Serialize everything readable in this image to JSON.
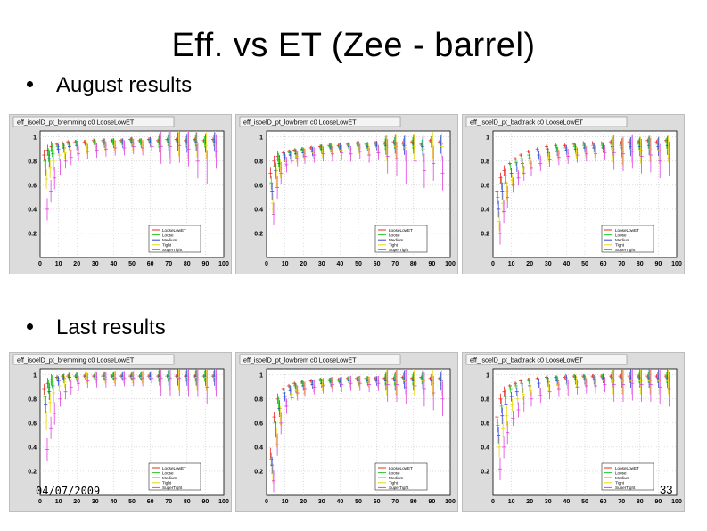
{
  "slide": {
    "title": "Eff. vs ET (Zee - barrel)",
    "bullets": [
      "August results",
      "Last results"
    ],
    "footer_date": "04/07/2009",
    "page_number": "33"
  },
  "legend_entries": [
    "LooseLowET",
    "Loose",
    "Medium",
    "Tight",
    "SuperTight"
  ],
  "series_colors": [
    "#e8282a",
    "#22cc22",
    "#3344dd",
    "#e6d800",
    "#e040e0"
  ],
  "chart_data": [
    {
      "id": "aug-bremming",
      "type": "scatter",
      "title": "eff_isoelD_pt_bremming c0 LooseLowET",
      "x": [
        3,
        5,
        7,
        10,
        13,
        16,
        20,
        25,
        30,
        35,
        40,
        45,
        50,
        55,
        60,
        65,
        70,
        75,
        80,
        85,
        90,
        95
      ],
      "xlim": [
        0,
        100
      ],
      "ylim": [
        0,
        1.05
      ],
      "xticks": [
        "0",
        "10",
        "20",
        "30",
        "40",
        "50",
        "60",
        "70",
        "80",
        "90",
        "100"
      ],
      "yticks": [
        "0.2",
        "0.4",
        "0.6",
        "0.8",
        "1"
      ],
      "legend": "bottom-right",
      "grid": true,
      "series": [
        {
          "name": "LooseLowET",
          "values": [
            0.85,
            0.89,
            0.92,
            0.94,
            0.95,
            0.96,
            0.96,
            0.96,
            0.97,
            0.97,
            0.97,
            0.97,
            0.98,
            0.97,
            0.98,
            0.97,
            0.98,
            0.98,
            0.97,
            0.98,
            0.97,
            0.98
          ]
        },
        {
          "name": "Loose",
          "values": [
            0.8,
            0.85,
            0.89,
            0.92,
            0.93,
            0.94,
            0.95,
            0.95,
            0.96,
            0.96,
            0.96,
            0.96,
            0.97,
            0.96,
            0.97,
            0.96,
            0.97,
            0.97,
            0.96,
            0.97,
            0.96,
            0.97
          ]
        },
        {
          "name": "Medium",
          "values": [
            0.75,
            0.82,
            0.86,
            0.9,
            0.91,
            0.92,
            0.93,
            0.94,
            0.94,
            0.95,
            0.95,
            0.95,
            0.96,
            0.95,
            0.96,
            0.95,
            0.96,
            0.96,
            0.95,
            0.96,
            0.95,
            0.96
          ]
        },
        {
          "name": "Tight",
          "values": [
            0.65,
            0.74,
            0.8,
            0.85,
            0.87,
            0.89,
            0.9,
            0.91,
            0.92,
            0.93,
            0.93,
            0.93,
            0.94,
            0.93,
            0.94,
            0.93,
            0.94,
            0.95,
            0.93,
            0.94,
            0.93,
            0.94
          ]
        },
        {
          "name": "SuperTight",
          "values": [
            0.4,
            0.55,
            0.66,
            0.75,
            0.8,
            0.83,
            0.86,
            0.88,
            0.89,
            0.9,
            0.91,
            0.91,
            0.92,
            0.91,
            0.92,
            0.92,
            0.92,
            0.93,
            0.9,
            0.8,
            0.75,
            0.88
          ]
        }
      ]
    },
    {
      "id": "aug-lowbrem",
      "type": "scatter",
      "title": "eff_isoelD_pt_lowbrem c0 LooseLowET",
      "x": [
        3,
        5,
        7,
        10,
        13,
        16,
        20,
        25,
        30,
        35,
        40,
        45,
        50,
        55,
        60,
        65,
        70,
        75,
        80,
        85,
        90,
        95
      ],
      "xlim": [
        0,
        100
      ],
      "ylim": [
        0,
        1.05
      ],
      "xticks": [
        "0",
        "10",
        "20",
        "30",
        "40",
        "50",
        "60",
        "70",
        "80",
        "90",
        "100"
      ],
      "yticks": [
        "0.2",
        "0.4",
        "0.6",
        "0.8",
        "1"
      ],
      "legend": "bottom-right",
      "grid": true,
      "series": [
        {
          "name": "LooseLowET",
          "values": [
            0.7,
            0.8,
            0.84,
            0.87,
            0.88,
            0.89,
            0.9,
            0.91,
            0.92,
            0.93,
            0.93,
            0.94,
            0.95,
            0.94,
            0.95,
            0.95,
            0.96,
            0.95,
            0.96,
            0.94,
            0.97,
            0.96
          ]
        },
        {
          "name": "Loose",
          "values": [
            0.62,
            0.76,
            0.81,
            0.85,
            0.87,
            0.88,
            0.89,
            0.9,
            0.91,
            0.92,
            0.92,
            0.93,
            0.94,
            0.93,
            0.94,
            0.94,
            0.95,
            0.94,
            0.95,
            0.93,
            0.96,
            0.95
          ]
        },
        {
          "name": "Medium",
          "values": [
            0.55,
            0.72,
            0.78,
            0.83,
            0.85,
            0.86,
            0.87,
            0.88,
            0.9,
            0.91,
            0.91,
            0.92,
            0.93,
            0.92,
            0.93,
            0.93,
            0.94,
            0.93,
            0.94,
            0.92,
            0.95,
            0.94
          ]
        },
        {
          "name": "Tight",
          "values": [
            0.45,
            0.66,
            0.74,
            0.8,
            0.83,
            0.84,
            0.86,
            0.87,
            0.88,
            0.89,
            0.89,
            0.9,
            0.91,
            0.9,
            0.91,
            0.91,
            0.92,
            0.91,
            0.92,
            0.9,
            0.93,
            0.92
          ]
        },
        {
          "name": "SuperTight",
          "values": [
            0.36,
            0.58,
            0.7,
            0.77,
            0.8,
            0.82,
            0.84,
            0.85,
            0.86,
            0.86,
            0.87,
            0.86,
            0.88,
            0.85,
            0.87,
            0.84,
            0.82,
            0.75,
            0.8,
            0.72,
            0.78,
            0.7
          ]
        }
      ]
    },
    {
      "id": "aug-badtrack",
      "type": "scatter",
      "title": "eff_isoelD_pt_badtrack c0 LooseLowET",
      "x": [
        3,
        5,
        7,
        10,
        13,
        16,
        20,
        25,
        30,
        35,
        40,
        45,
        50,
        55,
        60,
        65,
        70,
        75,
        80,
        85,
        90,
        95
      ],
      "xlim": [
        0,
        100
      ],
      "ylim": [
        0,
        1.05
      ],
      "xticks": [
        "0",
        "10",
        "20",
        "30",
        "40",
        "50",
        "60",
        "70",
        "80",
        "90",
        "100"
      ],
      "yticks": [
        "0.2",
        "0.4",
        "0.6",
        "0.8",
        "1"
      ],
      "legend": "bottom-right",
      "grid": true,
      "series": [
        {
          "name": "LooseLowET",
          "values": [
            0.55,
            0.66,
            0.72,
            0.78,
            0.82,
            0.85,
            0.88,
            0.9,
            0.92,
            0.93,
            0.93,
            0.94,
            0.95,
            0.95,
            0.95,
            0.96,
            0.95,
            0.96,
            0.96,
            0.97,
            0.96,
            0.97
          ]
        },
        {
          "name": "Loose",
          "values": [
            0.5,
            0.62,
            0.68,
            0.75,
            0.79,
            0.82,
            0.85,
            0.88,
            0.9,
            0.91,
            0.91,
            0.92,
            0.93,
            0.93,
            0.93,
            0.94,
            0.93,
            0.94,
            0.94,
            0.95,
            0.94,
            0.95
          ]
        },
        {
          "name": "Medium",
          "values": [
            0.4,
            0.55,
            0.62,
            0.7,
            0.75,
            0.78,
            0.82,
            0.85,
            0.87,
            0.88,
            0.89,
            0.9,
            0.91,
            0.91,
            0.91,
            0.92,
            0.91,
            0.92,
            0.92,
            0.93,
            0.92,
            0.93
          ]
        },
        {
          "name": "Tight",
          "values": [
            0.3,
            0.45,
            0.55,
            0.64,
            0.7,
            0.74,
            0.78,
            0.81,
            0.84,
            0.86,
            0.86,
            0.87,
            0.88,
            0.88,
            0.89,
            0.9,
            0.88,
            0.9,
            0.89,
            0.9,
            0.89,
            0.9
          ]
        },
        {
          "name": "SuperTight",
          "values": [
            0.2,
            0.38,
            0.5,
            0.6,
            0.66,
            0.7,
            0.74,
            0.78,
            0.81,
            0.83,
            0.84,
            0.85,
            0.86,
            0.86,
            0.87,
            0.87,
            0.86,
            0.88,
            0.84,
            0.85,
            0.8,
            0.82
          ]
        }
      ]
    },
    {
      "id": "last-bremming",
      "type": "scatter",
      "title": "eff_isoelD_pt_bremming c0 LooseLowET",
      "x": [
        3,
        5,
        7,
        10,
        13,
        16,
        20,
        25,
        30,
        35,
        40,
        45,
        50,
        55,
        60,
        65,
        70,
        75,
        80,
        85,
        90,
        95
      ],
      "xlim": [
        0,
        100
      ],
      "ylim": [
        0,
        1.05
      ],
      "xticks": [
        "0",
        "10",
        "20",
        "30",
        "40",
        "50",
        "60",
        "70",
        "80",
        "90",
        "100"
      ],
      "yticks": [
        "0.2",
        "0.4",
        "0.6",
        "0.8",
        "1"
      ],
      "legend": "bottom-right",
      "grid": true,
      "series": [
        {
          "name": "LooseLowET",
          "values": [
            0.88,
            0.93,
            0.96,
            0.98,
            0.99,
            0.99,
            0.99,
            0.99,
            0.99,
            0.99,
            0.99,
            0.99,
            0.99,
            0.99,
            0.99,
            0.99,
            0.99,
            0.99,
            0.99,
            0.99,
            0.99,
            0.99
          ]
        },
        {
          "name": "Loose",
          "values": [
            0.82,
            0.9,
            0.94,
            0.97,
            0.98,
            0.99,
            0.99,
            0.99,
            0.99,
            0.99,
            0.99,
            0.99,
            0.99,
            0.99,
            0.99,
            0.99,
            0.99,
            0.99,
            0.99,
            0.99,
            0.99,
            0.99
          ]
        },
        {
          "name": "Medium",
          "values": [
            0.75,
            0.86,
            0.91,
            0.95,
            0.97,
            0.98,
            0.98,
            0.99,
            0.99,
            0.99,
            0.99,
            0.99,
            0.99,
            0.99,
            0.99,
            0.99,
            0.99,
            0.99,
            0.99,
            0.99,
            0.99,
            0.99
          ]
        },
        {
          "name": "Tight",
          "values": [
            0.62,
            0.77,
            0.85,
            0.91,
            0.94,
            0.96,
            0.97,
            0.98,
            0.98,
            0.98,
            0.98,
            0.98,
            0.98,
            0.98,
            0.98,
            0.98,
            0.98,
            0.98,
            0.98,
            0.98,
            0.98,
            0.98
          ]
        },
        {
          "name": "SuperTight",
          "values": [
            0.38,
            0.56,
            0.68,
            0.8,
            0.86,
            0.9,
            0.93,
            0.95,
            0.96,
            0.96,
            0.97,
            0.97,
            0.97,
            0.97,
            0.97,
            0.97,
            0.97,
            0.97,
            0.96,
            0.96,
            0.9,
            0.96
          ]
        }
      ]
    },
    {
      "id": "last-lowbrem",
      "type": "scatter",
      "title": "eff_isoelD_pt_lowbrem c0 LooseLowET",
      "x": [
        3,
        5,
        7,
        10,
        13,
        16,
        20,
        25,
        30,
        35,
        40,
        45,
        50,
        55,
        60,
        65,
        70,
        75,
        80,
        85,
        90,
        95
      ],
      "xlim": [
        0,
        100
      ],
      "ylim": [
        0,
        1.05
      ],
      "xticks": [
        "0",
        "10",
        "20",
        "30",
        "40",
        "50",
        "60",
        "70",
        "80",
        "90",
        "100"
      ],
      "yticks": [
        "0.2",
        "0.4",
        "0.6",
        "0.8",
        "1"
      ],
      "legend": "bottom-right",
      "grid": true,
      "series": [
        {
          "name": "LooseLowET",
          "values": [
            0.35,
            0.65,
            0.8,
            0.88,
            0.91,
            0.93,
            0.94,
            0.95,
            0.96,
            0.96,
            0.96,
            0.97,
            0.97,
            0.97,
            0.97,
            0.97,
            0.97,
            0.98,
            0.97,
            0.98,
            0.97,
            0.97
          ]
        },
        {
          "name": "Loose",
          "values": [
            0.3,
            0.6,
            0.76,
            0.85,
            0.89,
            0.91,
            0.93,
            0.94,
            0.95,
            0.95,
            0.95,
            0.96,
            0.96,
            0.96,
            0.96,
            0.96,
            0.96,
            0.97,
            0.96,
            0.97,
            0.96,
            0.96
          ]
        },
        {
          "name": "Medium",
          "values": [
            0.25,
            0.55,
            0.72,
            0.82,
            0.87,
            0.89,
            0.91,
            0.92,
            0.93,
            0.94,
            0.94,
            0.95,
            0.95,
            0.95,
            0.95,
            0.95,
            0.95,
            0.96,
            0.95,
            0.96,
            0.95,
            0.95
          ]
        },
        {
          "name": "Tight",
          "values": [
            0.18,
            0.48,
            0.66,
            0.78,
            0.84,
            0.87,
            0.89,
            0.91,
            0.92,
            0.93,
            0.93,
            0.94,
            0.94,
            0.94,
            0.94,
            0.94,
            0.94,
            0.95,
            0.94,
            0.95,
            0.93,
            0.94
          ]
        },
        {
          "name": "SuperTight",
          "values": [
            0.12,
            0.42,
            0.6,
            0.74,
            0.81,
            0.85,
            0.88,
            0.9,
            0.91,
            0.92,
            0.92,
            0.93,
            0.93,
            0.92,
            0.93,
            0.92,
            0.92,
            0.9,
            0.91,
            0.88,
            0.85,
            0.8
          ]
        }
      ]
    },
    {
      "id": "last-badtrack",
      "type": "scatter",
      "title": "eff_isoelD_pt_badtrack c0 LooseLowET",
      "x": [
        3,
        5,
        7,
        10,
        13,
        16,
        20,
        25,
        30,
        35,
        40,
        45,
        50,
        55,
        60,
        65,
        70,
        75,
        80,
        85,
        90,
        95
      ],
      "xlim": [
        0,
        100
      ],
      "ylim": [
        0,
        1.05
      ],
      "xticks": [
        "0",
        "10",
        "20",
        "30",
        "40",
        "50",
        "60",
        "70",
        "80",
        "90",
        "100"
      ],
      "yticks": [
        "0.2",
        "0.4",
        "0.6",
        "0.8",
        "1"
      ],
      "legend": "bottom-right",
      "grid": true,
      "series": [
        {
          "name": "LooseLowET",
          "values": [
            0.65,
            0.8,
            0.86,
            0.91,
            0.93,
            0.95,
            0.96,
            0.97,
            0.98,
            0.98,
            0.98,
            0.99,
            0.99,
            0.99,
            0.99,
            0.99,
            0.99,
            0.99,
            0.99,
            0.99,
            0.99,
            0.99
          ]
        },
        {
          "name": "Loose",
          "values": [
            0.58,
            0.74,
            0.82,
            0.88,
            0.91,
            0.93,
            0.95,
            0.96,
            0.97,
            0.97,
            0.98,
            0.98,
            0.98,
            0.98,
            0.98,
            0.98,
            0.98,
            0.98,
            0.98,
            0.98,
            0.98,
            0.98
          ]
        },
        {
          "name": "Medium",
          "values": [
            0.5,
            0.66,
            0.75,
            0.82,
            0.86,
            0.89,
            0.91,
            0.93,
            0.94,
            0.95,
            0.96,
            0.96,
            0.96,
            0.96,
            0.97,
            0.97,
            0.97,
            0.97,
            0.97,
            0.97,
            0.97,
            0.97
          ]
        },
        {
          "name": "Tight",
          "values": [
            0.4,
            0.56,
            0.66,
            0.75,
            0.8,
            0.84,
            0.87,
            0.89,
            0.91,
            0.92,
            0.93,
            0.94,
            0.94,
            0.94,
            0.95,
            0.95,
            0.95,
            0.95,
            0.95,
            0.95,
            0.95,
            0.95
          ]
        },
        {
          "name": "SuperTight",
          "values": [
            0.22,
            0.4,
            0.52,
            0.64,
            0.71,
            0.76,
            0.8,
            0.83,
            0.86,
            0.88,
            0.89,
            0.9,
            0.91,
            0.91,
            0.92,
            0.92,
            0.92,
            0.93,
            0.92,
            0.92,
            0.9,
            0.88
          ]
        }
      ]
    }
  ]
}
